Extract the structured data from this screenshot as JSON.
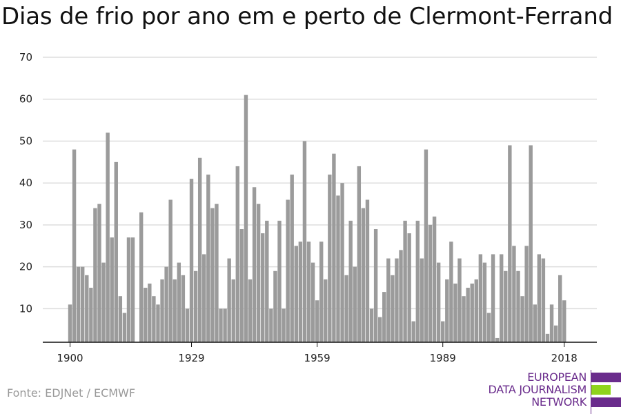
{
  "title": "Dias de frio por ano em e perto de Clermont-Ferrand",
  "source": "Fonte: EDJNet / ECMWF",
  "logo": {
    "line1": "EUROPEAN",
    "line2": "DATA JOURNALISM",
    "line3": "NETWORK",
    "colors": {
      "purple": "#6a2c8c",
      "green": "#8fd41c"
    }
  },
  "colors": {
    "bar": "#9b9b9b",
    "grid": "#dddddd",
    "axis": "#111111"
  },
  "chart_data": {
    "type": "bar",
    "title": "Dias de frio por ano em e perto de Clermont-Ferrand",
    "xlabel": "",
    "ylabel": "",
    "x_start": 1900,
    "x_end": 2021,
    "ylim": [
      2,
      70
    ],
    "yticks": [
      10,
      20,
      30,
      40,
      50,
      60,
      70
    ],
    "xticks": [
      1900,
      1929,
      1959,
      1989,
      2018
    ],
    "grid": true,
    "x": [
      1900,
      1901,
      1902,
      1903,
      1904,
      1905,
      1906,
      1907,
      1908,
      1909,
      1910,
      1911,
      1912,
      1913,
      1914,
      1915,
      1916,
      1917,
      1918,
      1919,
      1920,
      1921,
      1922,
      1923,
      1924,
      1925,
      1926,
      1927,
      1928,
      1929,
      1930,
      1931,
      1932,
      1933,
      1934,
      1935,
      1936,
      1937,
      1938,
      1939,
      1940,
      1941,
      1942,
      1943,
      1944,
      1945,
      1946,
      1947,
      1948,
      1949,
      1950,
      1951,
      1952,
      1953,
      1954,
      1955,
      1956,
      1957,
      1958,
      1959,
      1960,
      1961,
      1962,
      1963,
      1964,
      1965,
      1966,
      1967,
      1968,
      1969,
      1970,
      1971,
      1972,
      1973,
      1974,
      1975,
      1976,
      1977,
      1978,
      1979,
      1980,
      1981,
      1982,
      1983,
      1984,
      1985,
      1986,
      1987,
      1988,
      1989,
      1990,
      1991,
      1992,
      1993,
      1994,
      1995,
      1996,
      1997,
      1998,
      1999,
      2000,
      2001,
      2002,
      2003,
      2004,
      2005,
      2006,
      2007,
      2008,
      2009,
      2010,
      2011,
      2012,
      2013,
      2014,
      2015,
      2016,
      2017,
      2018,
      2019,
      2020,
      2021
    ],
    "values": [
      11,
      48,
      20,
      20,
      18,
      15,
      34,
      35,
      21,
      52,
      27,
      45,
      13,
      9,
      27,
      27,
      null,
      33,
      15,
      16,
      13,
      11,
      17,
      20,
      36,
      17,
      21,
      18,
      10,
      41,
      19,
      46,
      23,
      42,
      34,
      35,
      10,
      10,
      22,
      17,
      44,
      29,
      61,
      17,
      39,
      35,
      28,
      31,
      10,
      19,
      31,
      10,
      36,
      42,
      25,
      26,
      50,
      26,
      21,
      12,
      26,
      17,
      42,
      47,
      37,
      40,
      18,
      31,
      20,
      44,
      34,
      36,
      10,
      29,
      8,
      14,
      22,
      18,
      22,
      24,
      31,
      28,
      7,
      31,
      22,
      48,
      30,
      32,
      21,
      7,
      17,
      26,
      16,
      22,
      13,
      15,
      16,
      17,
      23,
      21,
      9,
      23,
      3,
      23,
      19,
      49,
      25,
      19,
      13,
      25,
      49,
      11,
      23,
      22,
      4,
      11,
      6,
      18,
      12,
      null,
      null,
      null
    ]
  }
}
